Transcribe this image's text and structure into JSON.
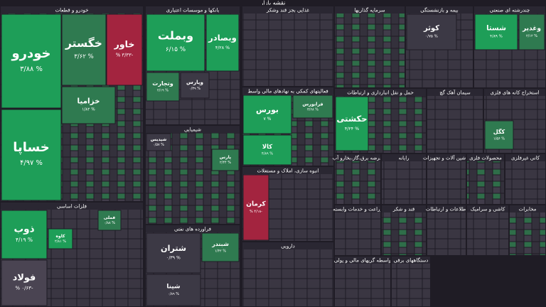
{
  "title": "نقشه بازار",
  "sectors": [
    {
      "name": "خودرو و قطعات",
      "tiles": [
        {
          "label": "خودرو",
          "change": "% ۳/۸۸",
          "color": "#1e9e58"
        },
        {
          "label": "خساپا",
          "change": "% ۴/۹۷",
          "color": "#1e9e58"
        },
        {
          "label": "خگستر",
          "change": "% ۳/۶۲",
          "color": "#2f7a50"
        },
        {
          "label": "خاور",
          "change": "-۳/۳۳ %",
          "color": "#a3243f"
        },
        {
          "label": "خزامیا",
          "change": "% ۱/۸۲",
          "color": "#2f7a50"
        }
      ]
    },
    {
      "name": "فلزات اساسی",
      "tiles": [
        {
          "label": "ذوب",
          "change": "% ۴/۱۹",
          "color": "#1e9e58"
        },
        {
          "label": "فولاد",
          "change": "-۰/۶۳ %",
          "color": "#4a4452"
        },
        {
          "label": "کاوه",
          "change": "% ۲/۸۱",
          "color": "#1e9e58"
        },
        {
          "label": "فملی",
          "change": "% ۰/۸۸",
          "color": "#2f7a50"
        }
      ]
    },
    {
      "name": "بانکها و موسسات اعتباری",
      "tiles": [
        {
          "label": "وبملت",
          "change": "% ۶/۱۵",
          "color": "#1e9e58"
        },
        {
          "label": "وبصادر",
          "change": "% ۴/۲۸",
          "color": "#1e9e58"
        },
        {
          "label": "وتجارت",
          "change": "% ۲/۱۹",
          "color": "#2f7a50"
        },
        {
          "label": "وپارس",
          "change": "% ۰/۳۹",
          "color": "#3c3945"
        }
      ]
    },
    {
      "name": "شیمیایی",
      "tiles": [
        {
          "label": "شپدیس",
          "change": "% ۰/۵۷",
          "color": "#3c3945"
        },
        {
          "label": "پارس",
          "change": "% ۲/۴۴",
          "color": "#2f7a50"
        }
      ]
    },
    {
      "name": "فراورده های نفتی",
      "tiles": [
        {
          "label": "شتران",
          "change": "% ۰/۳۹",
          "color": "#3c3945"
        },
        {
          "label": "شپنا",
          "change": "% ۰/۸۹",
          "color": "#3c3945"
        },
        {
          "label": "شبندر",
          "change": "% ۱/۴۲",
          "color": "#2f7a50"
        }
      ]
    },
    {
      "name": "غذایی بجز قند وشکر",
      "tiles": []
    },
    {
      "name": "فعالیتهای کمکی به نهادهای مالی واسط",
      "tiles": [
        {
          "label": "بورس",
          "change": "% ۷",
          "color": "#1e9e58"
        },
        {
          "label": "فرابورس",
          "change": "% ۳/۶۸",
          "color": "#2f7a50"
        },
        {
          "label": "کالا",
          "change": "% ۴/۸۹",
          "color": "#1e9e58"
        }
      ]
    },
    {
      "name": "انبوه سازی، املاک و مستغلات",
      "tiles": [
        {
          "label": "کرمان",
          "change": "-۴/۱۸ %",
          "color": "#a3243f"
        }
      ]
    },
    {
      "name": "دارویی",
      "tiles": []
    },
    {
      "name": "سرمایه گذاریها",
      "tiles": []
    },
    {
      "name": "بیمه و بازنشستگی",
      "tiles": [
        {
          "label": "کوثر",
          "change": "% ۰/۷۵",
          "color": "#3c3945"
        }
      ]
    },
    {
      "name": "چندرشته ای صنعتی",
      "tiles": [
        {
          "label": "شستا",
          "change": "% ۴/۸۹",
          "color": "#1e9e58"
        },
        {
          "label": "وغدیر",
          "change": "% ۲/۱۲",
          "color": "#2f7a50"
        }
      ]
    },
    {
      "name": "حمل و نقل انبارداری و ارتباطات",
      "tiles": [
        {
          "label": "حکشتی",
          "change": "% ۴/۲۴",
          "color": "#1e9e58"
        }
      ]
    },
    {
      "name": "سیمان آهک گچ",
      "tiles": []
    },
    {
      "name": "استخراج کانه های فلزی",
      "tiles": [
        {
          "label": "کگل",
          "change": "% ۱/۵۶",
          "color": "#2f7a50"
        }
      ]
    },
    {
      "name": "عرضه برق،گاز،بخارو آب",
      "tiles": []
    },
    {
      "name": "رایانه",
      "tiles": []
    },
    {
      "name": "ماشین آلات و تجهیزات",
      "tiles": []
    },
    {
      "name": "محصولات فلزی",
      "tiles": []
    },
    {
      "name": "کانی غیرفلزی",
      "tiles": []
    },
    {
      "name": "زراعت و خدمات وابسته",
      "tiles": []
    },
    {
      "name": "قند و شکر",
      "tiles": []
    },
    {
      "name": "اطلاعات و ارتباطات",
      "tiles": []
    },
    {
      "name": "کاشی و سرامیک",
      "tiles": []
    },
    {
      "name": "مخابرات",
      "tiles": []
    },
    {
      "name": "واسطه گریهای مالی و پولی",
      "tiles": []
    },
    {
      "name": "دستگاههای برقی",
      "tiles": []
    }
  ]
}
